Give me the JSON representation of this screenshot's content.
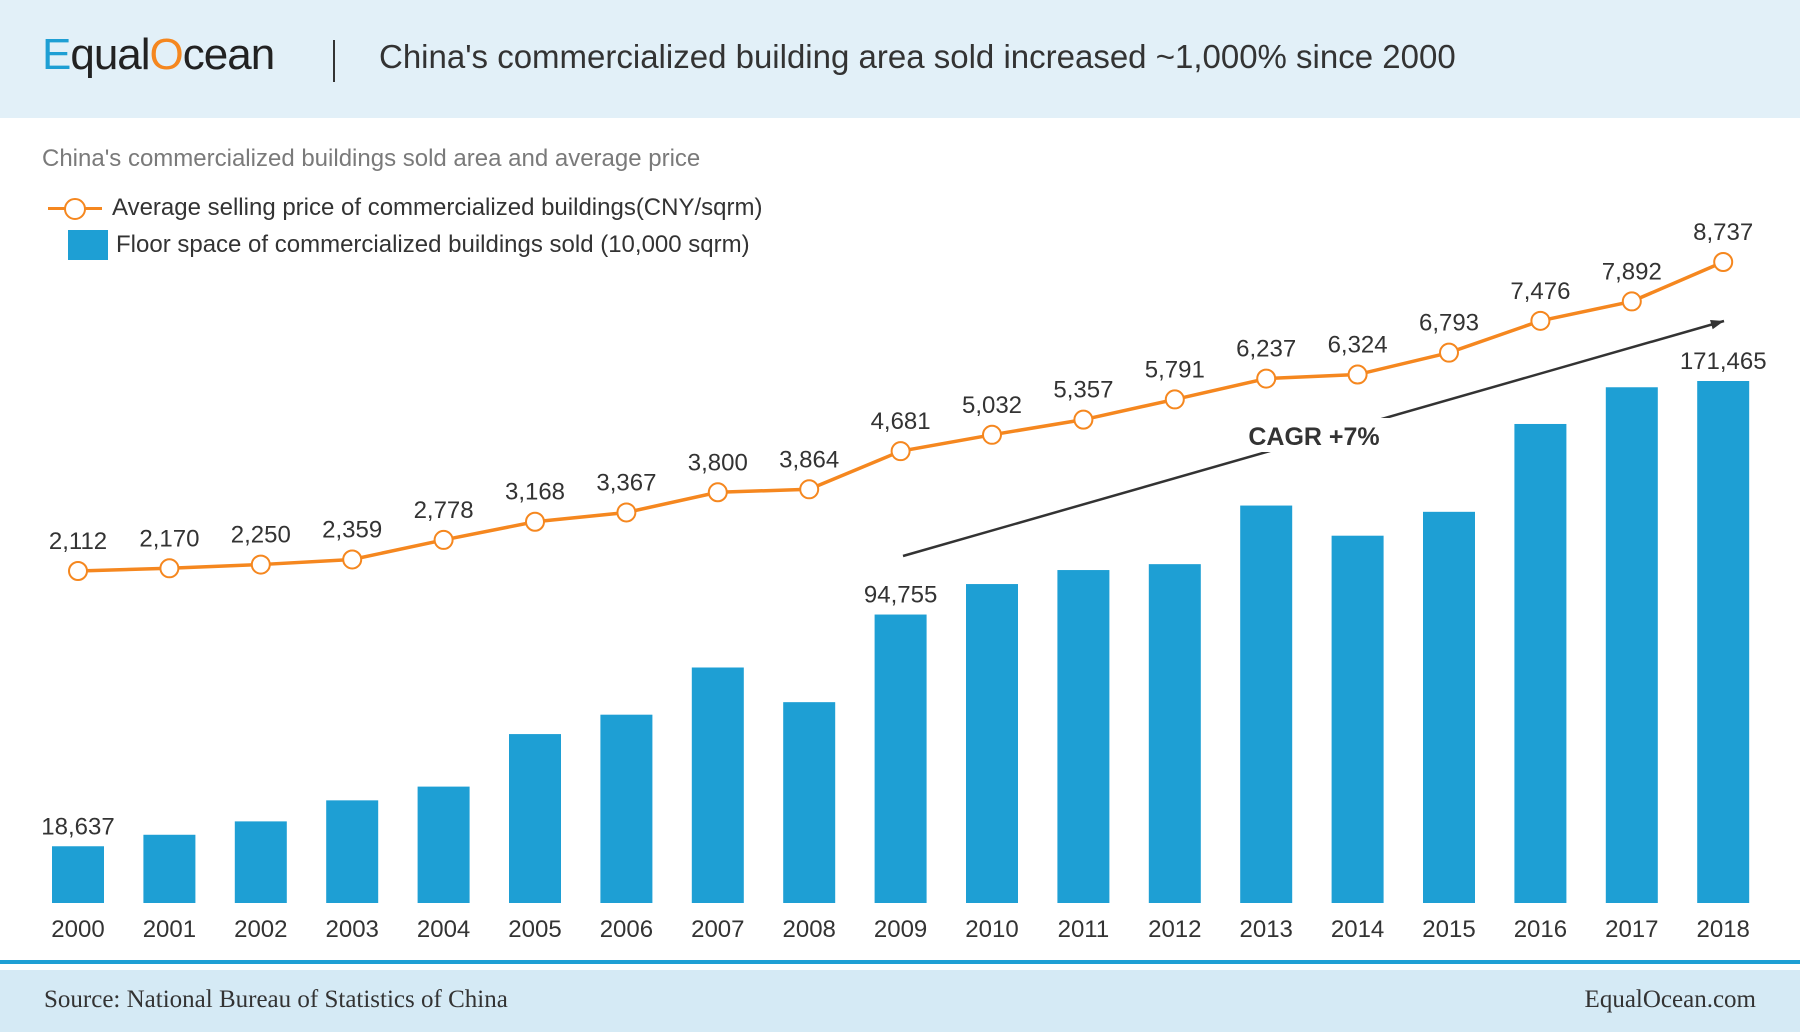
{
  "header": {
    "logo": {
      "part1": "E",
      "part2": "qual",
      "part3": "O",
      "part4": "cean"
    },
    "title": "China's commercialized building area sold increased ~1,000% since 2000"
  },
  "colors": {
    "bar": "#1e9fd4",
    "line": "#f5871f",
    "header_bg": "#e2f0f8",
    "footer_bg": "#d5eaf5"
  },
  "chart_data": {
    "type": "bar+line",
    "title": "China's commercialized  buildings sold area and average price",
    "categories": [
      "2000",
      "2001",
      "2002",
      "2003",
      "2004",
      "2005",
      "2006",
      "2007",
      "2008",
      "2009",
      "2010",
      "2011",
      "2012",
      "2013",
      "2014",
      "2015",
      "2016",
      "2017",
      "2018"
    ],
    "series": [
      {
        "name": "Floor space of commercialized  buildings sold (10,000 sqrm)",
        "type": "bar",
        "values": [
          18637,
          22412,
          26808,
          33718,
          38232,
          55487,
          61857,
          77355,
          65970,
          94755,
          104765,
          109367,
          111304,
          130551,
          120649,
          128495,
          157349,
          169408,
          171465
        ],
        "labels": {
          "0": "18,637",
          "9": "94,755",
          "18": "171,465"
        }
      },
      {
        "name": "Average selling price of commercialized  buildings(CNY/sqrm)",
        "type": "line",
        "values": [
          2112,
          2170,
          2250,
          2359,
          2778,
          3168,
          3367,
          3800,
          3864,
          4681,
          5032,
          5357,
          5791,
          6237,
          6324,
          6793,
          7476,
          7892,
          8737
        ],
        "labels": [
          "2,112",
          "2,170",
          "2,250",
          "2,359",
          "2,778",
          "3,168",
          "3,367",
          "3,800",
          "3,864",
          "4,681",
          "5,032",
          "5,357",
          "5,791",
          "6,237",
          "6,324",
          "6,793",
          "7,476",
          "7,892",
          "8,737"
        ]
      }
    ],
    "annotation": "CAGR +7%",
    "legend": "top-left",
    "grid": false
  },
  "footer": {
    "source": "Source: National Bureau of Statistics of China",
    "site": "EqualOcean.com"
  }
}
